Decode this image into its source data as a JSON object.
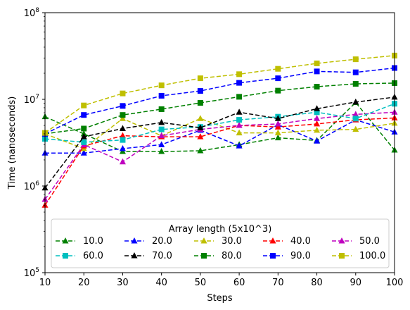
{
  "chart_data": {
    "type": "line",
    "xlabel": "Steps",
    "ylabel": "Time (nanoseconds)",
    "x": [
      10,
      20,
      30,
      40,
      50,
      60,
      70,
      80,
      90,
      100
    ],
    "xlim": [
      10,
      100
    ],
    "ylim": [
      100000,
      100000000
    ],
    "yscale": "log",
    "x_ticks": [
      "10",
      "20",
      "30",
      "40",
      "50",
      "60",
      "70",
      "80",
      "90",
      "100"
    ],
    "y_ticks": [
      {
        "value": 100000,
        "base": "10",
        "exp": "5"
      },
      {
        "value": 1000000,
        "base": "10",
        "exp": "6"
      },
      {
        "value": 10000000,
        "base": "10",
        "exp": "7"
      },
      {
        "value": 100000000,
        "base": "10",
        "exp": "8"
      }
    ],
    "legend": {
      "title": "Array length (5x10^3)",
      "placement": "lower center",
      "columns": 5
    },
    "series": [
      {
        "name": "10.0",
        "color": "#008000",
        "marker": "triangle",
        "values": [
          6300000,
          4000000,
          2500000,
          2500000,
          2550000,
          3000000,
          3600000,
          3350000,
          9200000,
          2600000
        ]
      },
      {
        "name": "20.0",
        "color": "#0000ff",
        "marker": "triangle",
        "values": [
          2400000,
          2400000,
          2700000,
          3000000,
          4400000,
          2900000,
          5100000,
          3300000,
          5800000,
          4200000
        ]
      },
      {
        "name": "30.0",
        "color": "#bfbf00",
        "marker": "triangle",
        "values": [
          4000000,
          2700000,
          6000000,
          3800000,
          6000000,
          4100000,
          4100000,
          4400000,
          4500000,
          5300000
        ]
      },
      {
        "name": "40.0",
        "color": "#ff0000",
        "marker": "triangle",
        "values": [
          600000,
          2900000,
          3800000,
          3700000,
          3700000,
          5000000,
          4800000,
          5200000,
          5800000,
          6100000
        ]
      },
      {
        "name": "50.0",
        "color": "#bf00bf",
        "marker": "triangle",
        "values": [
          700000,
          3000000,
          1900000,
          3800000,
          4500000,
          5000000,
          5200000,
          6000000,
          6700000,
          7100000
        ]
      },
      {
        "name": "60.0",
        "color": "#00bfbf",
        "marker": "square",
        "values": [
          3500000,
          3200000,
          3400000,
          4500000,
          4800000,
          5800000,
          6300000,
          7100000,
          6000000,
          8900000
        ]
      },
      {
        "name": "70.0",
        "color": "#000000",
        "marker": "triangle",
        "values": [
          950000,
          3700000,
          4600000,
          5400000,
          4700000,
          7100000,
          6000000,
          7800000,
          9300000,
          10600000
        ]
      },
      {
        "name": "80.0",
        "color": "#008000",
        "marker": "square",
        "values": [
          4000000,
          4600000,
          6600000,
          7700000,
          9100000,
          10700000,
          12600000,
          14000000,
          15100000,
          15400000
        ]
      },
      {
        "name": "90.0",
        "color": "#0000ff",
        "marker": "square",
        "values": [
          4000000,
          6600000,
          8400000,
          11000000,
          12500000,
          15500000,
          17500000,
          21000000,
          20500000,
          23000000
        ]
      },
      {
        "name": "100.0",
        "color": "#bfbf00",
        "marker": "square",
        "values": [
          4100000,
          8500000,
          11700000,
          14500000,
          17500000,
          19500000,
          22500000,
          26000000,
          29000000,
          32000000
        ]
      }
    ]
  }
}
